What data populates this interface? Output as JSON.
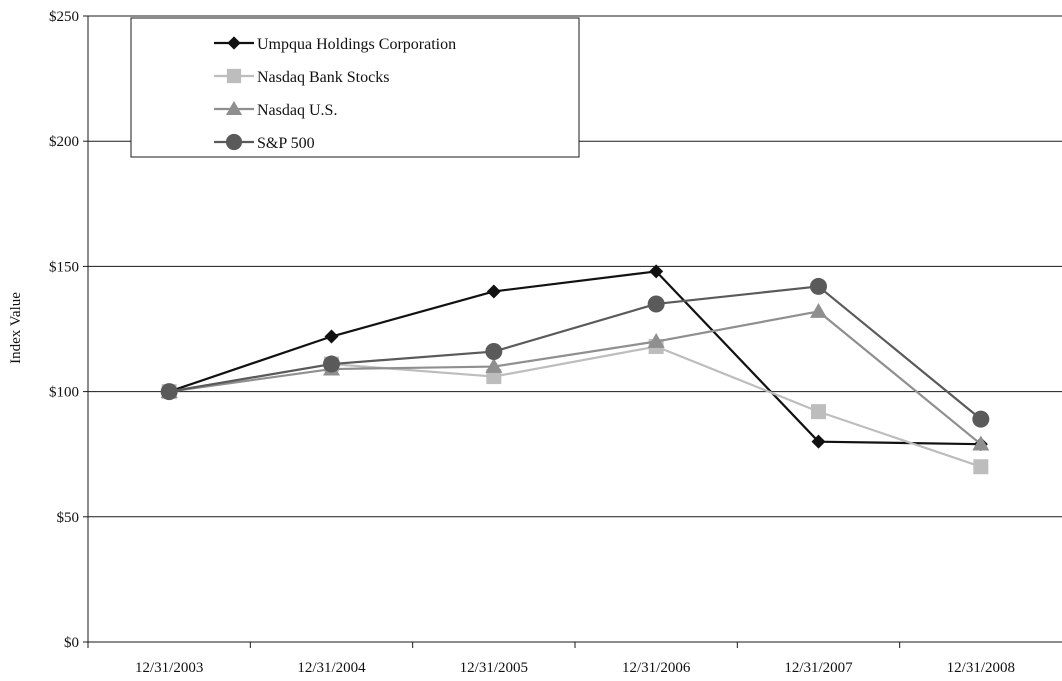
{
  "chart_data": {
    "type": "line",
    "title": "",
    "xlabel": "",
    "ylabel": "Index Value",
    "categories": [
      "12/31/2003",
      "12/31/2004",
      "12/31/2005",
      "12/31/2006",
      "12/31/2007",
      "12/31/2008"
    ],
    "ylim": [
      0,
      250
    ],
    "yticks": [
      0,
      50,
      100,
      150,
      200,
      250
    ],
    "ytick_labels": [
      "$0",
      "$50",
      "$100",
      "$150",
      "$200",
      "$250"
    ],
    "grid": true,
    "legend_position": "top-left",
    "series": [
      {
        "name": "Umpqua Holdings Corporation",
        "values": [
          100,
          122,
          140,
          148,
          80,
          79
        ],
        "color": "#111111",
        "marker": "diamond"
      },
      {
        "name": "Nasdaq Bank Stocks",
        "values": [
          100,
          111,
          106,
          118,
          92,
          70
        ],
        "color": "#bdbdbd",
        "marker": "square"
      },
      {
        "name": "Nasdaq U.S.",
        "values": [
          100,
          109,
          110,
          120,
          132,
          79
        ],
        "color": "#8f8f8f",
        "marker": "triangle"
      },
      {
        "name": "S&P 500",
        "values": [
          100,
          111,
          116,
          135,
          142,
          89
        ],
        "color": "#5a5a5a",
        "marker": "circle"
      }
    ]
  }
}
